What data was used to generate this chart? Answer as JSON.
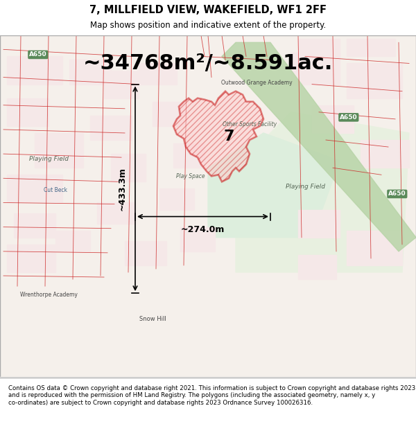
{
  "title_line1": "7, MILLFIELD VIEW, WAKEFIELD, WF1 2FF",
  "title_line2": "Map shows position and indicative extent of the property.",
  "area_text": "~34768m²/~8.591ac.",
  "width_label": "~274.0m",
  "height_label": "~433.3m",
  "property_number": "7",
  "footer_text": "Contains OS data © Crown copyright and database right 2021. This information is subject to Crown copyright and database rights 2023 and is reproduced with the permission of HM Land Registry. The polygons (including the associated geometry, namely x, y co-ordinates) are subject to Crown copyright and database rights 2023 Ordnance Survey 100026316.",
  "map_bg_color": "#f5f0eb",
  "title_bg_color": "#ffffff",
  "footer_bg_color": "#ffffff",
  "red_color": "#cc2222",
  "green_road_color": "#7ab87a",
  "map_border_color": "#cccccc"
}
